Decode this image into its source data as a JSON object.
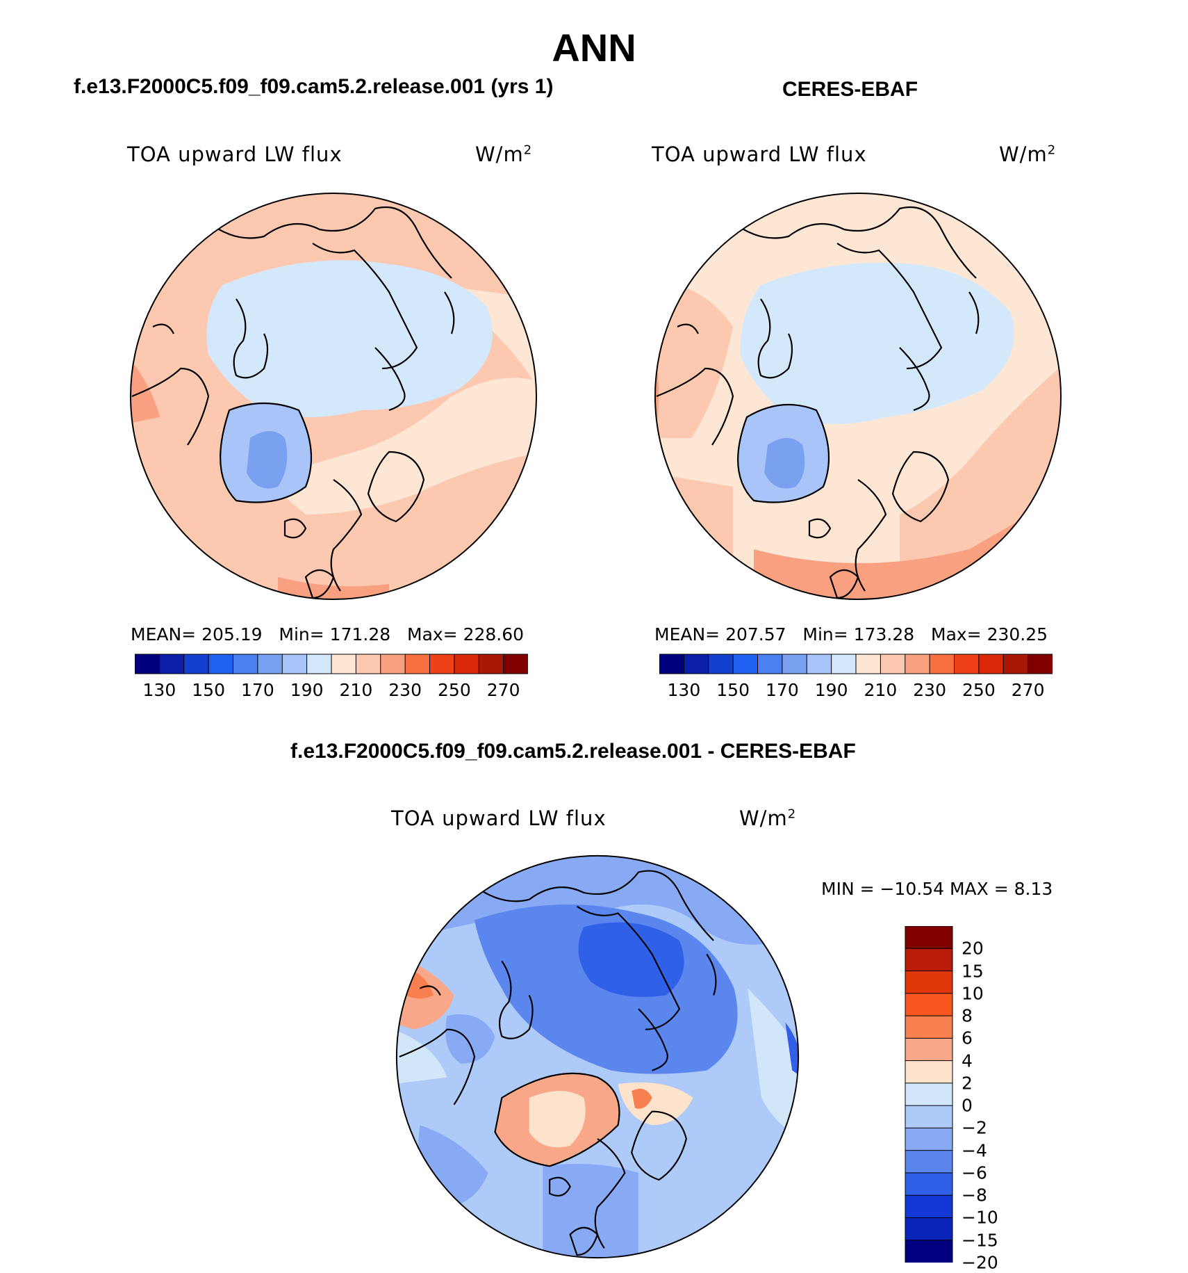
{
  "title": "ANN",
  "panels": {
    "model": {
      "heading": "f.e13.F2000C5.f09_f09.cam5.2.release.001 (yrs 1)",
      "variable": "TOA upward LW flux",
      "units": "W/m",
      "units_sup": "2",
      "stats": {
        "mean_label": "MEAN=",
        "mean": "205.19",
        "min_label": "Min=",
        "min": "171.28",
        "max_label": "Max=",
        "max": "228.60"
      }
    },
    "obs": {
      "heading": "CERES-EBAF",
      "variable": "TOA upward LW flux",
      "units": "W/m",
      "units_sup": "2",
      "stats": {
        "mean_label": "MEAN=",
        "mean": "207.57",
        "min_label": "Min=",
        "min": "173.28",
        "max_label": "Max=",
        "max": "230.25"
      }
    },
    "diff": {
      "heading": "f.e13.F2000C5.f09_f09.cam5.2.release.001 - CERES-EBAF",
      "variable": "TOA upward LW flux",
      "units": "W/m",
      "units_sup": "2",
      "minmax": "MIN = −10.54 MAX =    8.13"
    }
  },
  "colorbars": {
    "abs": {
      "colors": [
        "#00007f",
        "#0a1ea8",
        "#1440d0",
        "#2060f0",
        "#4a80f0",
        "#7aa0f0",
        "#a8c4f8",
        "#d4e8fc",
        "#fde6d4",
        "#fcc8b0",
        "#f8a080",
        "#f87040",
        "#f04018",
        "#d82808",
        "#a81804",
        "#800000"
      ],
      "labels": [
        "130",
        "150",
        "170",
        "190",
        "210",
        "230",
        "250",
        "270"
      ]
    },
    "diff": {
      "colors": [
        "#800000",
        "#b81c08",
        "#e03808",
        "#f85820",
        "#f88050",
        "#f8a888",
        "#fde2cc",
        "#d2e6fa",
        "#aecaf8",
        "#88aaf4",
        "#5a86ee",
        "#3060e8",
        "#1438d8",
        "#0a24b8",
        "#000080"
      ],
      "labels": [
        "20",
        "15",
        "10",
        "8",
        "6",
        "4",
        "2",
        "0",
        "−2",
        "−4",
        "−6",
        "−8",
        "−10",
        "−15",
        "−20"
      ]
    }
  },
  "map_colors": {
    "pale_blue": "#d4e8fc",
    "light_blue": "#a8c4f8",
    "mid_blue": "#7aa0f0",
    "blue": "#5a86ee",
    "deep_blue": "#3060e8",
    "pale_orange": "#fde6d4",
    "light_orange": "#fcc8b0",
    "orange": "#f8a080"
  }
}
